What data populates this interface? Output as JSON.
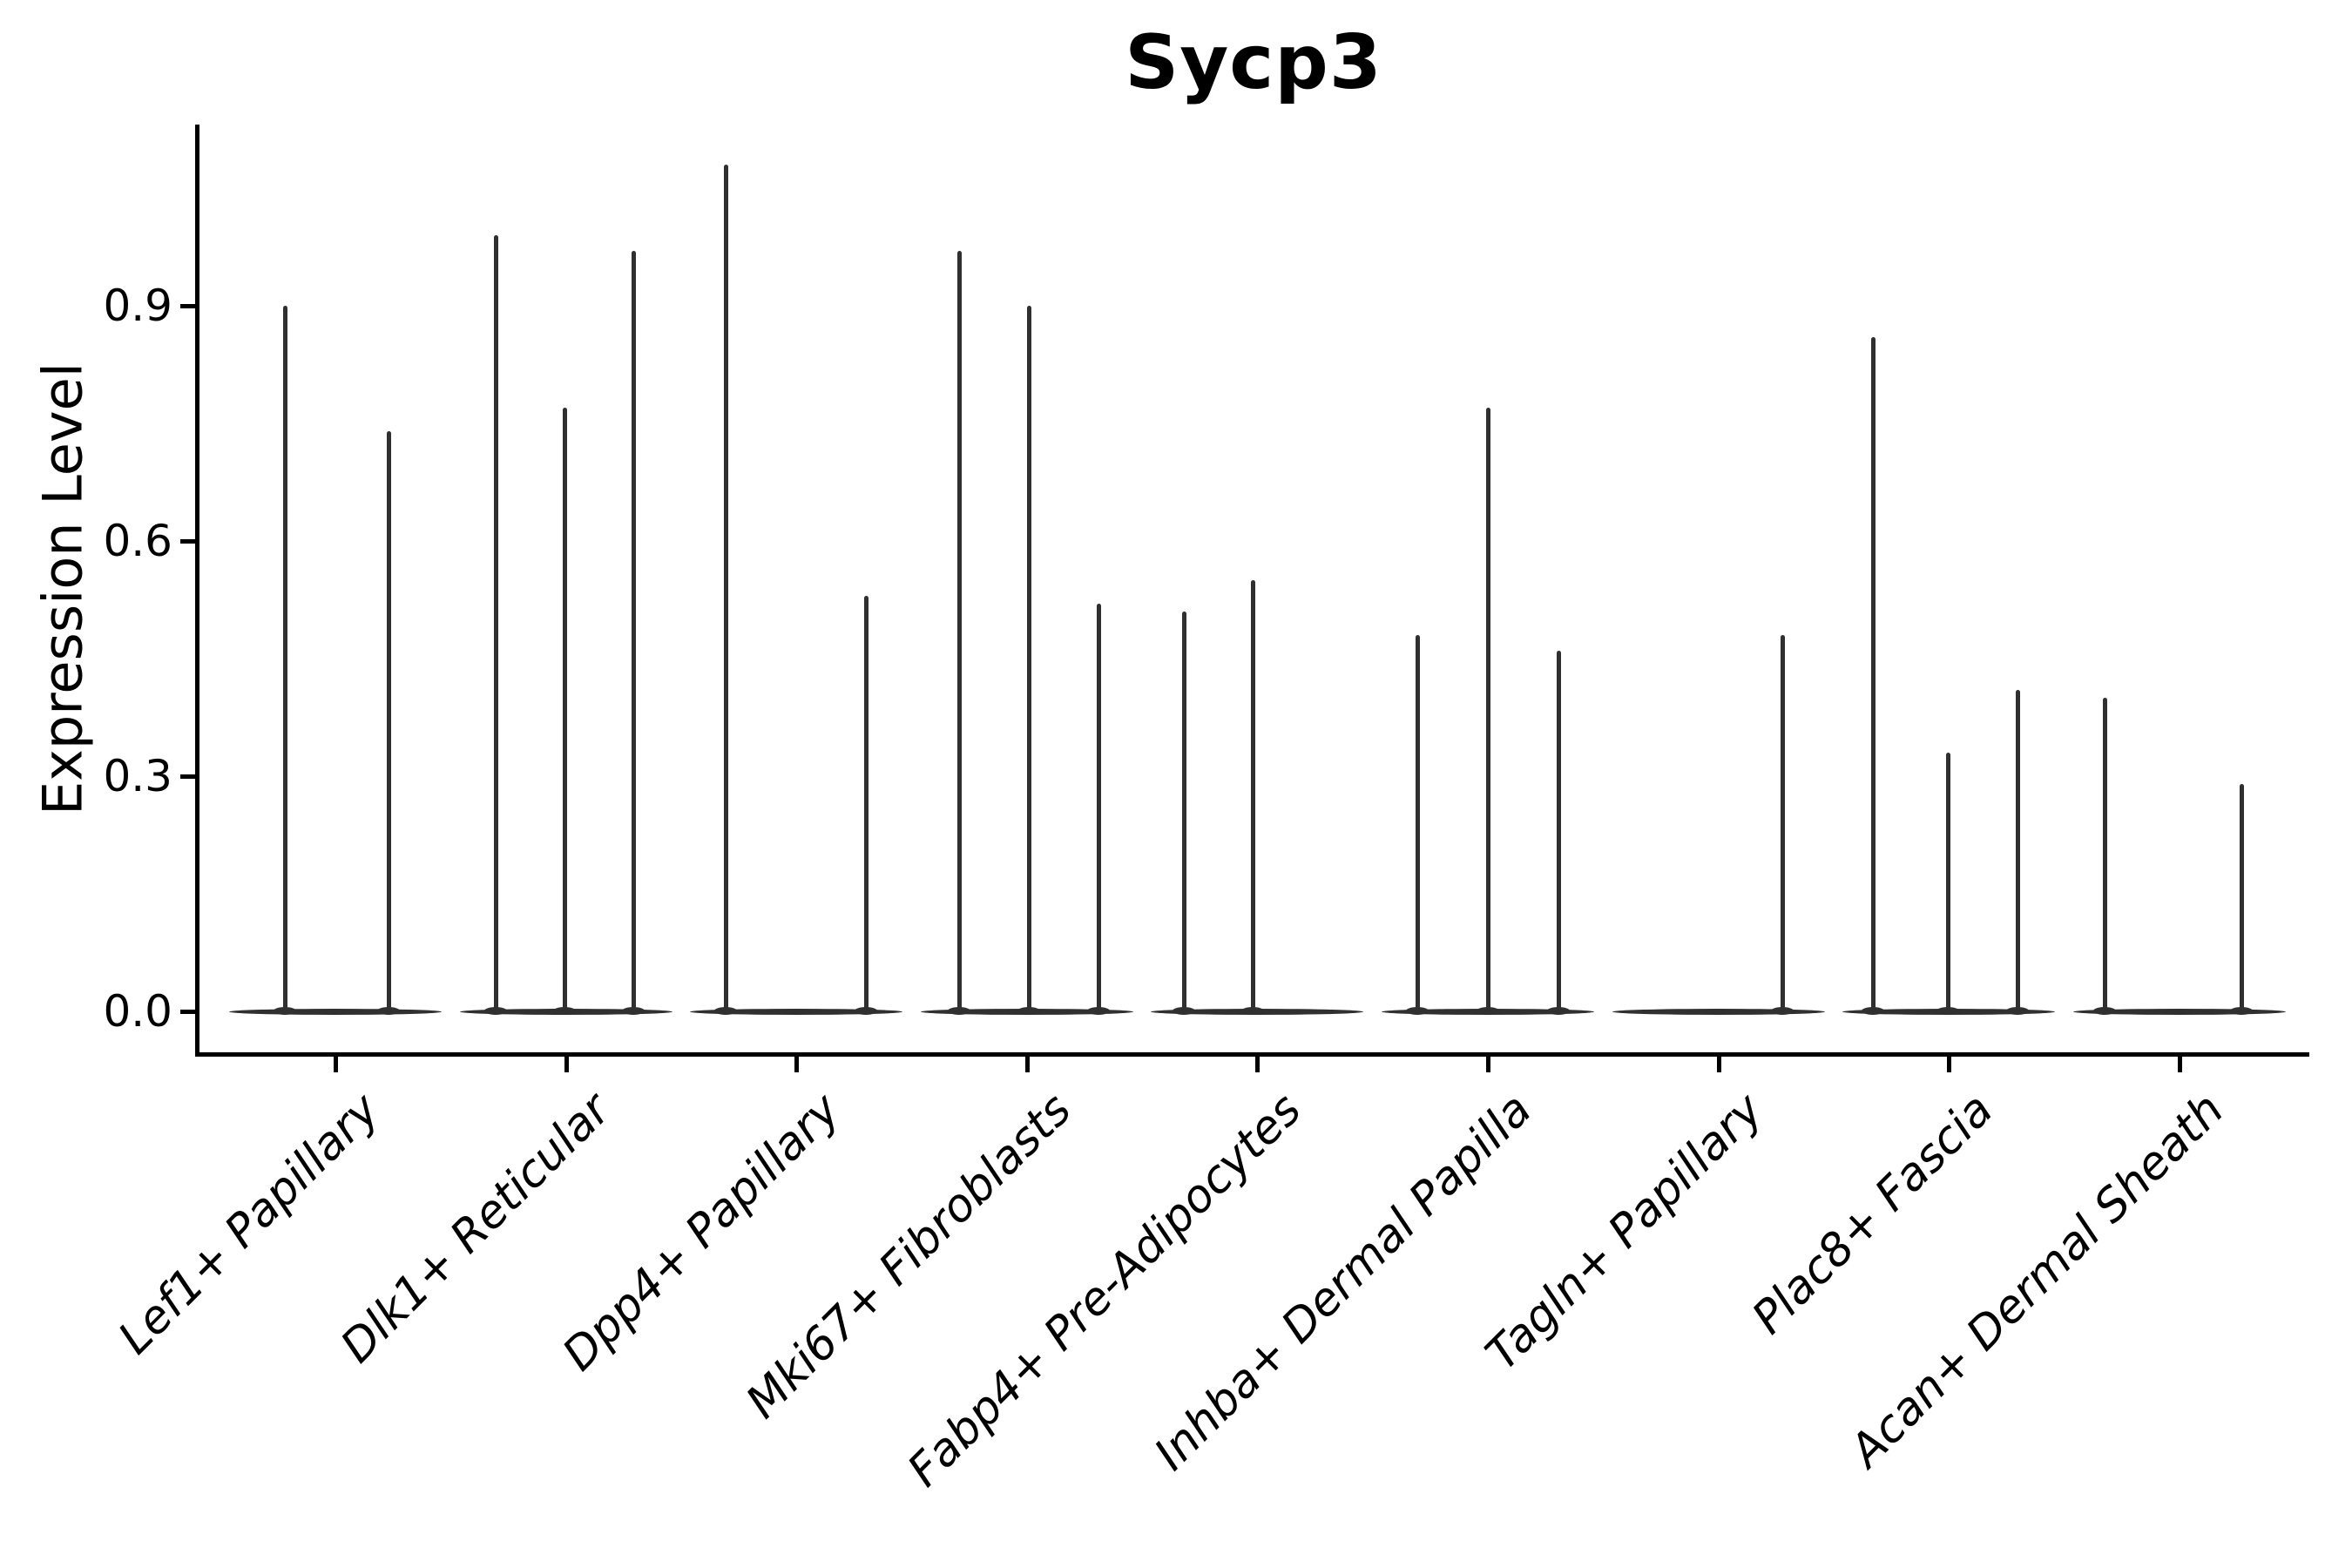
{
  "figure": {
    "background": "#ffffff"
  },
  "axes": {
    "axis_color": "#000000",
    "violin_color": "#303030"
  },
  "chart_data": {
    "type": "violin",
    "title": "Sycp3",
    "xlabel": "",
    "ylabel": "Expression Level",
    "yticks": [
      0.0,
      0.3,
      0.6,
      0.9
    ],
    "ytick_labels": [
      "0.0",
      "0.3",
      "0.6",
      "0.9"
    ],
    "ylim": [
      -0.05,
      1.13
    ],
    "grid": false,
    "legend_position": "none",
    "categories": [
      "Lef1+ Papillary",
      "Dlk1+ Reticular",
      "Dpp4+ Papillary",
      "Mki67+ Fibroblasts",
      "Fabp4+ Pre-Adipocytes",
      "Inhba+ Dermal Papilla",
      "Tagln+ Papillary",
      "Plac8+ Fascia",
      "Acan+ Dermal Sheath"
    ],
    "groups": [
      {
        "label": "Lef1+ Papillary",
        "violins": [
          {
            "dx": -58,
            "peak": 0.9
          },
          {
            "dx": 61,
            "peak": 0.74
          }
        ]
      },
      {
        "label": "Dlk1+ Reticular",
        "violins": [
          {
            "dx": -81,
            "peak": 0.99
          },
          {
            "dx": -2,
            "peak": 0.77
          },
          {
            "dx": 77,
            "peak": 0.97
          }
        ]
      },
      {
        "label": "Dpp4+ Papillary",
        "violins": [
          {
            "dx": -81,
            "peak": 1.08
          },
          {
            "dx": 80,
            "peak": 0.53
          }
        ]
      },
      {
        "label": "Mki67+ Fibroblasts",
        "violins": [
          {
            "dx": -78,
            "peak": 0.97
          },
          {
            "dx": 2,
            "peak": 0.9
          },
          {
            "dx": 82,
            "peak": 0.52
          }
        ]
      },
      {
        "label": "Fabp4+ Pre-Adipocytes",
        "violins": [
          {
            "dx": -84,
            "peak": 0.51
          },
          {
            "dx": -5,
            "peak": 0.55
          }
        ]
      },
      {
        "label": "Inhba+ Dermal Papilla",
        "violins": [
          {
            "dx": -81,
            "peak": 0.48
          },
          {
            "dx": 0,
            "peak": 0.77
          },
          {
            "dx": 81,
            "peak": 0.46
          }
        ]
      },
      {
        "label": "Tagln+ Papillary",
        "violins": [
          {
            "dx": 73,
            "peak": 0.48
          }
        ]
      },
      {
        "label": "Plac8+ Fascia",
        "violins": [
          {
            "dx": -87,
            "peak": 0.86
          },
          {
            "dx": -1,
            "peak": 0.33
          },
          {
            "dx": 79,
            "peak": 0.41
          }
        ]
      },
      {
        "label": "Acan+ Dermal Sheath",
        "violins": [
          {
            "dx": -86,
            "peak": 0.4
          },
          {
            "dx": 71,
            "peak": 0.29
          }
        ]
      }
    ]
  }
}
